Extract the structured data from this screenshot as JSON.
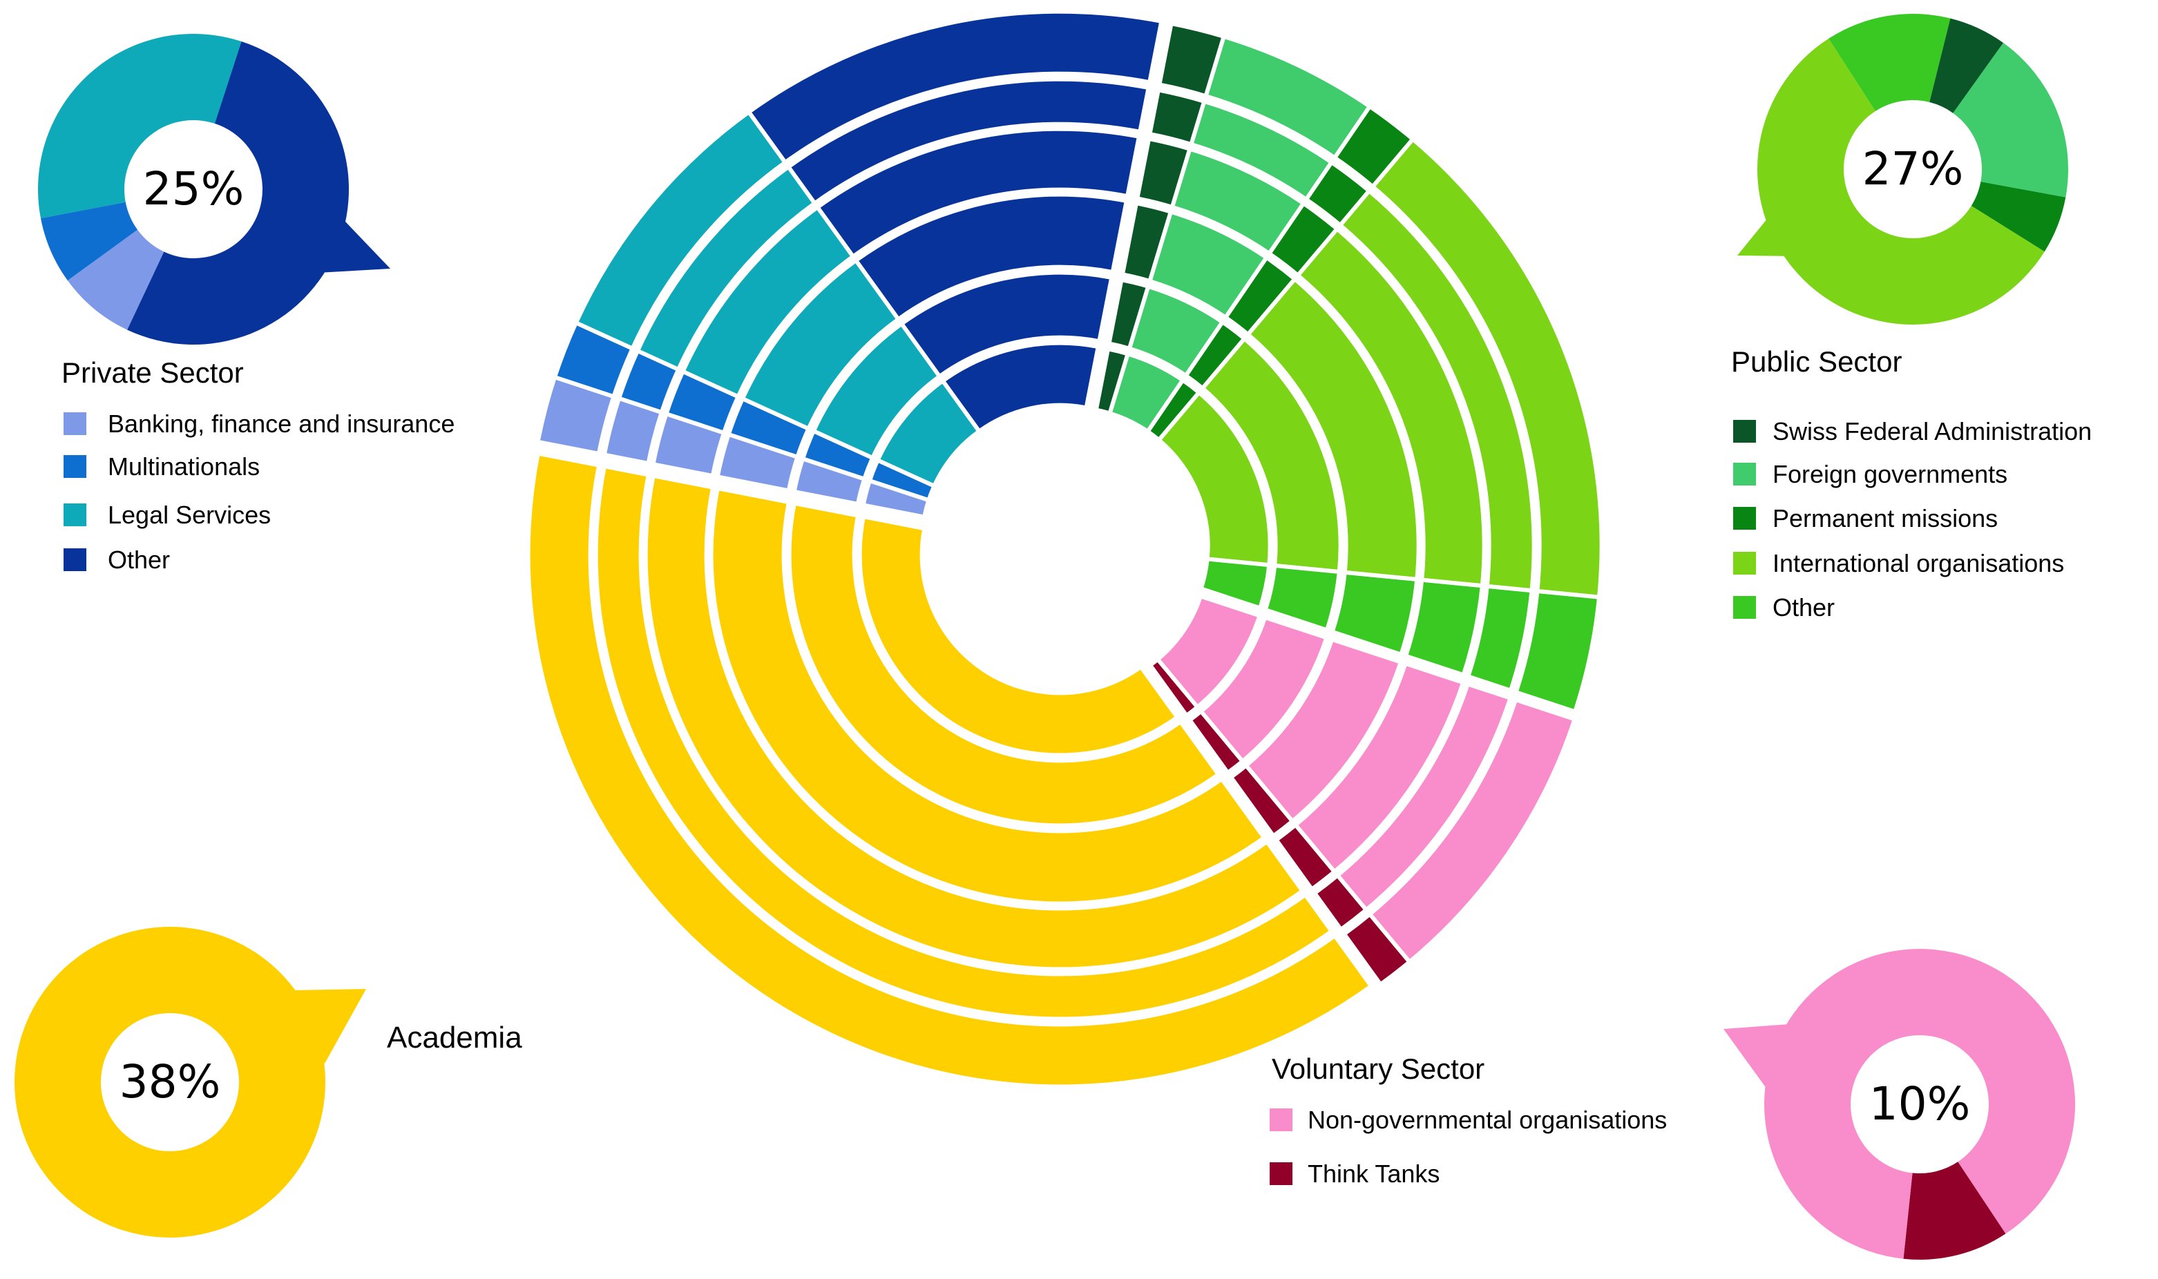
{
  "chart_data": {
    "type": "pie",
    "sectors": [
      {
        "key": "private",
        "name": "Private Sector",
        "share_pct": 25,
        "label": "25%",
        "categories": [
          {
            "name": "Banking, finance and insurance",
            "value": 8,
            "color": "#7E99E8"
          },
          {
            "name": "Multinationals",
            "value": 7,
            "color": "#0E6FD0"
          },
          {
            "name": "Legal Services",
            "value": 33,
            "color": "#0FAAB9"
          },
          {
            "name": "Other",
            "value": 52,
            "color": "#07339A"
          }
        ]
      },
      {
        "key": "academia",
        "name": "Academia",
        "share_pct": 38,
        "label": "38%",
        "categories": [
          {
            "name": "Academia",
            "value": 100,
            "color": "#FFD000"
          }
        ]
      },
      {
        "key": "voluntary",
        "name": "Voluntary Sector",
        "share_pct": 10,
        "label": "10%",
        "categories": [
          {
            "name": "Non-governmental organisations",
            "value": 89,
            "color": "#F98DCB"
          },
          {
            "name": "Think Tanks",
            "value": 11,
            "color": "#900028"
          }
        ]
      },
      {
        "key": "public",
        "name": "Public Sector",
        "share_pct": 27,
        "label": "27%",
        "categories": [
          {
            "name": "Swiss Federal Administration",
            "value": 6,
            "color": "#0A5628"
          },
          {
            "name": "Foreign governments",
            "value": 18,
            "color": "#40CC6C"
          },
          {
            "name": "Permanent missions",
            "value": 6,
            "color": "#088512"
          },
          {
            "name": "International organisations",
            "value": 57,
            "color": "#7BD416"
          },
          {
            "name": "Other",
            "value": 13,
            "color": "#3AC923"
          }
        ]
      }
    ],
    "legend_placement": "corners"
  }
}
